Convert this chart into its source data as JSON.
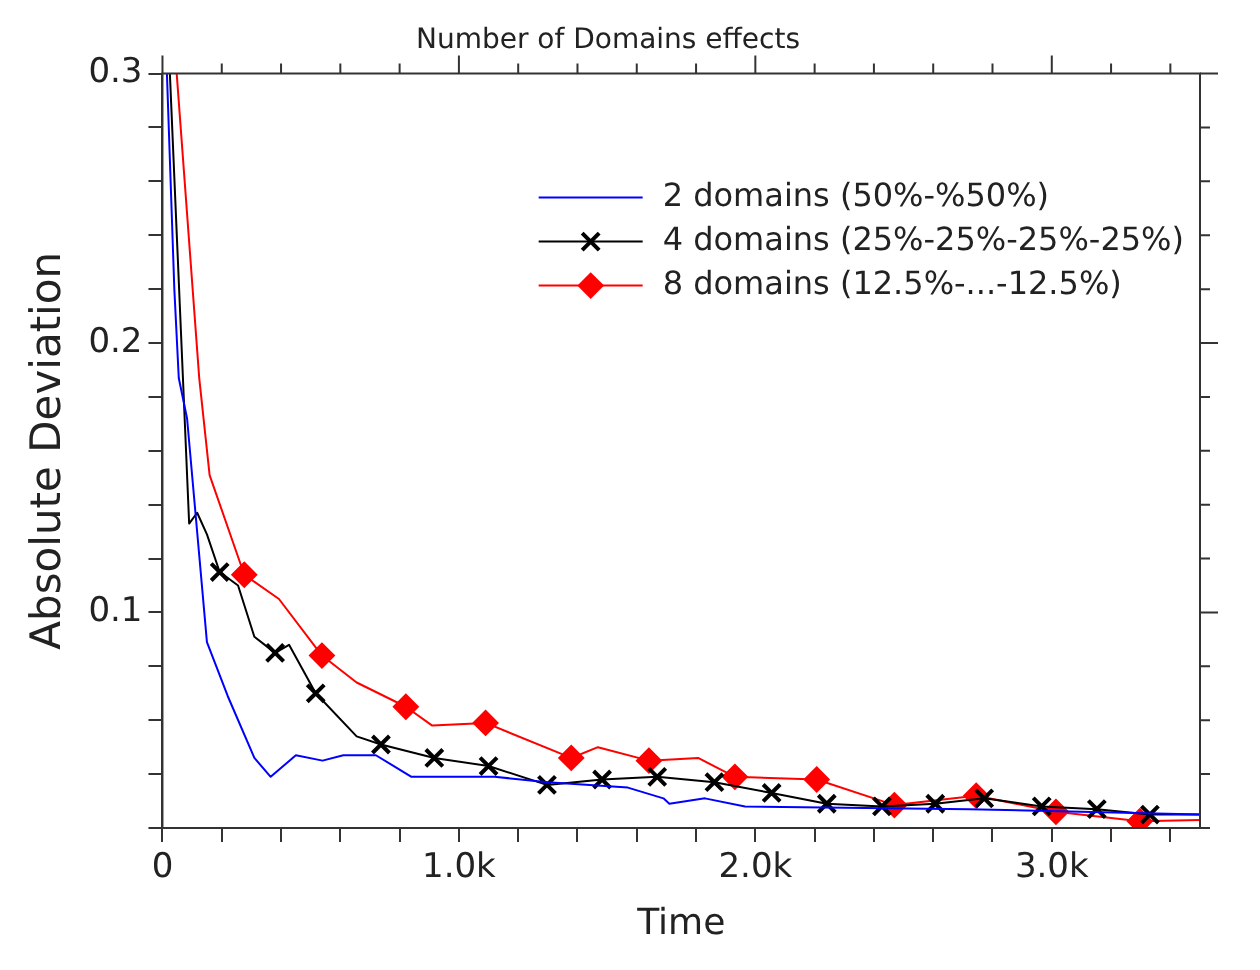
{
  "chart_data": {
    "type": "line",
    "title": "Number of Domains effects",
    "xlabel": "Time",
    "ylabel": "Absolute Deviation",
    "xlim": [
      0,
      3500
    ],
    "ylim": [
      0.02,
      0.3
    ],
    "xticks": [
      0,
      {
        "value": 200,
        "label": null
      },
      {
        "value": 400,
        "label": null
      },
      {
        "value": 600,
        "label": null
      },
      {
        "value": 800,
        "label": null
      },
      {
        "value": 1000,
        "label": "1.0k"
      },
      {
        "value": 1200,
        "label": null
      },
      {
        "value": 1400,
        "label": null
      },
      {
        "value": 1600,
        "label": null
      },
      {
        "value": 1800,
        "label": null
      },
      {
        "value": 2000,
        "label": "2.0k"
      },
      {
        "value": 2200,
        "label": null
      },
      {
        "value": 2400,
        "label": null
      },
      {
        "value": 2600,
        "label": null
      },
      {
        "value": 2800,
        "label": null
      },
      {
        "value": 3000,
        "label": "3.0k"
      },
      {
        "value": 3200,
        "label": null
      },
      {
        "value": 3400,
        "label": null
      }
    ],
    "yticks": [
      {
        "value": 0.02,
        "label": null
      },
      {
        "value": 0.04,
        "label": null
      },
      {
        "value": 0.06,
        "label": null
      },
      {
        "value": 0.08,
        "label": null
      },
      0.1,
      {
        "value": 0.12,
        "label": null
      },
      {
        "value": 0.14,
        "label": null
      },
      {
        "value": 0.16,
        "label": null
      },
      {
        "value": 0.18,
        "label": null
      },
      0.2,
      {
        "value": 0.22,
        "label": null
      },
      {
        "value": 0.24,
        "label": null
      },
      {
        "value": 0.26,
        "label": null
      },
      {
        "value": 0.28,
        "label": null
      },
      0.3
    ],
    "grid": false,
    "legend": "top right",
    "line_style": "solid",
    "series": [
      {
        "type": "line",
        "name": "2 domains (50%-%50%)",
        "color": "#0000ff",
        "marker": "none",
        "x": [
          15,
          40,
          55,
          83,
          150,
          220,
          310,
          365,
          450,
          540,
          610,
          720,
          840,
          1120,
          1300,
          1570,
          1690,
          1710,
          1830,
          1965,
          2720,
          3500
        ],
        "values": [
          0.3,
          0.22,
          0.187,
          0.172,
          0.089,
          0.069,
          0.046,
          0.039,
          0.047,
          0.045,
          0.047,
          0.047,
          0.039,
          0.039,
          0.037,
          0.035,
          0.031,
          0.029,
          0.031,
          0.028,
          0.027,
          0.025
        ]
      },
      {
        "type": "line",
        "name": "4 domains (25%-25%-25%-25%)",
        "color": "#000000",
        "marker": "none",
        "x": [
          25,
          69,
          90,
          117,
          150,
          193,
          255,
          310,
          380,
          427,
          517,
          655,
          737,
          917,
          1100,
          1297,
          1483,
          1669,
          1862,
          2055,
          2241,
          2427,
          2607,
          2772,
          2966,
          3152,
          3331,
          3500
        ],
        "values": [
          0.3,
          0.187,
          0.133,
          0.137,
          0.129,
          0.115,
          0.11,
          0.091,
          0.085,
          0.088,
          0.07,
          0.054,
          0.051,
          0.046,
          0.043,
          0.036,
          0.038,
          0.039,
          0.037,
          0.033,
          0.029,
          0.028,
          0.029,
          0.031,
          0.028,
          0.027,
          0.025,
          0.025
        ]
      },
      {
        "type": "scatter",
        "color": "#000000",
        "marker": "cross",
        "x": [
          193,
          380,
          517,
          737,
          917,
          1100,
          1297,
          1483,
          1669,
          1862,
          2055,
          2241,
          2427,
          2607,
          2772,
          2966,
          3152,
          3331
        ],
        "values": [
          0.115,
          0.085,
          0.07,
          0.051,
          0.046,
          0.043,
          0.036,
          0.038,
          0.039,
          0.037,
          0.033,
          0.029,
          0.028,
          0.029,
          0.031,
          0.028,
          0.027,
          0.025
        ]
      },
      {
        "type": "line",
        "name": "8 domains (12.5%-...-12.5%)",
        "color": "#ff0000",
        "marker": "none",
        "x": [
          48,
          124,
          159,
          276,
          393,
          538,
          655,
          821,
          910,
          1090,
          1379,
          1469,
          1641,
          1807,
          1931,
          2207,
          2469,
          2745,
          3014,
          3297,
          3500
        ],
        "values": [
          0.3,
          0.187,
          0.151,
          0.114,
          0.105,
          0.084,
          0.074,
          0.065,
          0.058,
          0.059,
          0.046,
          0.05,
          0.045,
          0.046,
          0.039,
          0.038,
          0.0285,
          0.032,
          0.026,
          0.0225,
          0.023
        ]
      },
      {
        "type": "scatter",
        "color": "#ff0000",
        "marker": "diamond",
        "x": [
          276,
          538,
          821,
          1090,
          1379,
          1641,
          1931,
          2207,
          2469,
          2745,
          3014,
          3297
        ],
        "values": [
          0.114,
          0.084,
          0.065,
          0.059,
          0.046,
          0.045,
          0.039,
          0.038,
          0.0285,
          0.032,
          0.026,
          0.0225
        ]
      }
    ]
  }
}
